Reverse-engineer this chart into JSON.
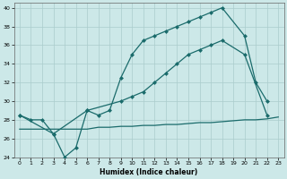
{
  "xlabel": "Humidex (Indice chaleur)",
  "bg_color": "#cce8e8",
  "grid_color": "#aacccc",
  "line_color": "#1a6b6b",
  "xlim": [
    -0.5,
    23.5
  ],
  "ylim": [
    24,
    40.5
  ],
  "xticks": [
    0,
    1,
    2,
    3,
    4,
    5,
    6,
    7,
    8,
    9,
    10,
    11,
    12,
    13,
    14,
    15,
    16,
    17,
    18,
    19,
    20,
    21,
    22,
    23
  ],
  "yticks": [
    24,
    26,
    28,
    30,
    32,
    34,
    36,
    38,
    40
  ],
  "line1_x": [
    0,
    1,
    2,
    3,
    4,
    5,
    6,
    7,
    8,
    9,
    10,
    11,
    12,
    13,
    14,
    15,
    16,
    17,
    18,
    20,
    21,
    22
  ],
  "line1_y": [
    28.5,
    28,
    28,
    26.5,
    24,
    25,
    29,
    28.5,
    29,
    32.5,
    35,
    36.5,
    37,
    37.5,
    38,
    38.5,
    39,
    39.5,
    40,
    37,
    32,
    30
  ],
  "line2_x": [
    0,
    3,
    6,
    9,
    10,
    11,
    12,
    13,
    14,
    15,
    16,
    17,
    18,
    20,
    22
  ],
  "line2_y": [
    28.5,
    26.5,
    29,
    30,
    30.5,
    31,
    32,
    33,
    34,
    35,
    35.5,
    36,
    36.5,
    35,
    28.5
  ],
  "line3_x": [
    0,
    5,
    6,
    7,
    8,
    9,
    10,
    11,
    12,
    13,
    14,
    15,
    16,
    17,
    18,
    19,
    20,
    21,
    22,
    23
  ],
  "line3_y": [
    27.0,
    27.0,
    27.0,
    27.2,
    27.2,
    27.3,
    27.3,
    27.4,
    27.4,
    27.5,
    27.5,
    27.6,
    27.7,
    27.7,
    27.8,
    27.9,
    28.0,
    28.0,
    28.1,
    28.3
  ]
}
